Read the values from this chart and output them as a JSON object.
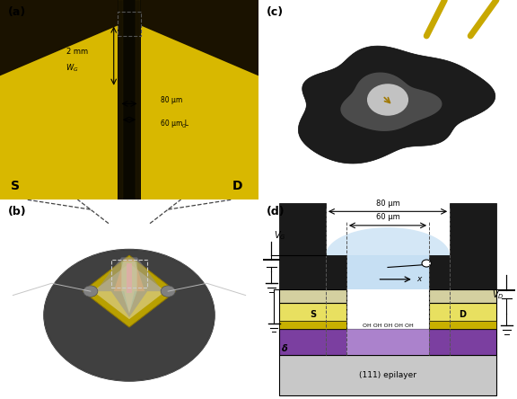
{
  "panel_labels": [
    "(a)",
    "(b)",
    "(c)",
    "(d)"
  ],
  "panel_label_fontsize": 9,
  "panel_label_color": "#000000",
  "bg_color": "#ffffff",
  "diagram_light_blue": "#b8d8f0",
  "diagram_black_gate": "#1a1a1a",
  "diagram_yellow_contact": "#e8e060",
  "diagram_gold_sd": "#c8b000",
  "diagram_purple_delta": "#7b3fa0",
  "diagram_gray_epilayer": "#c8c8c8",
  "dim_80um_label": "80 μm",
  "dim_60um_label": "60 μm",
  "x_label": "x",
  "s_label": "S",
  "d_label": "D",
  "delta_label": "δ",
  "epilayer_label": "(111) epilayer",
  "oh_label": "OH OH OH OH OH",
  "a_2mm_label": "2 mm",
  "a_80um_label": "80 μm",
  "a_60um_label": "60 μm L",
  "a_lg_sub": "G",
  "a_S_label": "S",
  "a_D_label": "D"
}
